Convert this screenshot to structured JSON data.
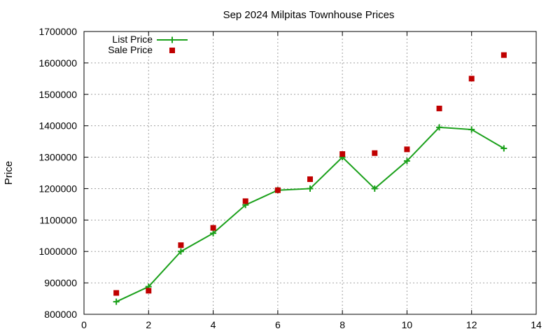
{
  "chart_data": {
    "type": "line",
    "title": "Sep 2024 Milpitas Townhouse Prices",
    "xlabel": "",
    "ylabel": "Price",
    "xlim": [
      0,
      14
    ],
    "ylim": [
      800000,
      1700000
    ],
    "xticks": [
      0,
      2,
      4,
      6,
      8,
      10,
      12,
      14
    ],
    "yticks": [
      800000,
      900000,
      1000000,
      1100000,
      1200000,
      1300000,
      1400000,
      1500000,
      1600000,
      1700000
    ],
    "grid": true,
    "legend_position": "top-left",
    "series": [
      {
        "name": "List Price",
        "style": "line+plus",
        "color": "#1aa01a",
        "x": [
          1,
          2,
          3,
          4,
          5,
          6,
          7,
          8,
          9,
          10,
          11,
          12,
          13
        ],
        "y": [
          840000,
          888000,
          1000000,
          1058000,
          1148000,
          1195000,
          1200000,
          1300000,
          1200000,
          1288000,
          1395000,
          1388000,
          1328000
        ]
      },
      {
        "name": "Sale Price",
        "style": "square",
        "color": "#c00000",
        "x": [
          1,
          2,
          3,
          4,
          5,
          6,
          7,
          8,
          9,
          10,
          11,
          12,
          13
        ],
        "y": [
          868000,
          875000,
          1020000,
          1075000,
          1160000,
          1195000,
          1230000,
          1310000,
          1313000,
          1325000,
          1455000,
          1550000,
          1625000
        ]
      }
    ]
  }
}
